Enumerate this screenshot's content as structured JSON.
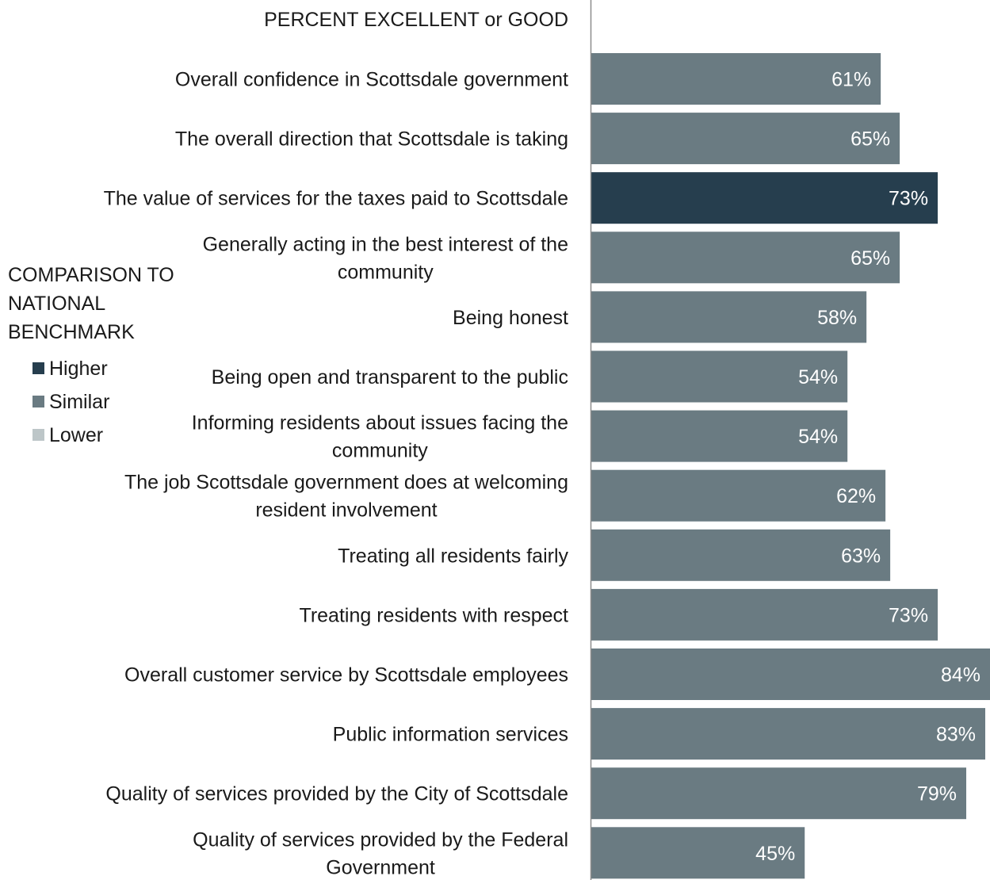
{
  "chart_data": {
    "type": "bar",
    "orientation": "horizontal",
    "header": "PERCENT EXCELLENT or GOOD",
    "categories": [
      [
        "Overall confidence in Scottsdale government"
      ],
      [
        "The overall direction that Scottsdale is taking"
      ],
      [
        "The value of services for the taxes paid to Scottsdale"
      ],
      [
        "Generally acting in the best interest of the",
        "community"
      ],
      [
        "Being honest"
      ],
      [
        "Being open and transparent to the public"
      ],
      [
        "Informing residents about issues facing the",
        "community"
      ],
      [
        "The job Scottsdale government does at welcoming",
        "resident involvement"
      ],
      [
        "Treating all residents fairly"
      ],
      [
        "Treating residents with respect"
      ],
      [
        "Overall customer service by Scottsdale employees"
      ],
      [
        "Public information services"
      ],
      [
        "Quality of services provided by the City of Scottsdale"
      ],
      [
        "Quality of services provided by the Federal",
        "Government"
      ]
    ],
    "values": [
      61,
      65,
      73,
      65,
      58,
      54,
      54,
      62,
      63,
      73,
      84,
      83,
      79,
      45
    ],
    "value_labels": [
      "61%",
      "65%",
      "73%",
      "65%",
      "58%",
      "54%",
      "54%",
      "62%",
      "63%",
      "73%",
      "84%",
      "83%",
      "79%",
      "45%"
    ],
    "comparison": [
      "Similar",
      "Similar",
      "Higher",
      "Similar",
      "Similar",
      "Similar",
      "Similar",
      "Similar",
      "Similar",
      "Similar",
      "Similar",
      "Similar",
      "Similar",
      "Similar"
    ],
    "xlim": [
      0,
      84
    ],
    "grid": false,
    "legend": {
      "title": [
        "COMPARISON TO",
        "NATIONAL",
        "BENCHMARK"
      ],
      "placement": "left",
      "entries": [
        {
          "name": "Higher",
          "color": "#263e4e"
        },
        {
          "name": "Similar",
          "color": "#6a7b82"
        },
        {
          "name": "Lower",
          "color": "#bdc6c8"
        }
      ]
    }
  }
}
